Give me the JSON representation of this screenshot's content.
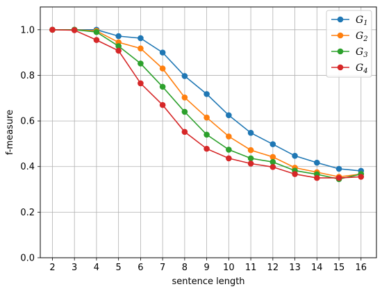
{
  "chart_data": {
    "type": "line",
    "title": "",
    "xlabel": "sentence length",
    "ylabel": "f-measure",
    "x": [
      2,
      3,
      4,
      5,
      6,
      7,
      8,
      9,
      10,
      11,
      12,
      13,
      14,
      15,
      16
    ],
    "xlim": [
      1.45,
      16.7
    ],
    "ylim": [
      0.0,
      1.1
    ],
    "yticks": [
      0.0,
      0.2,
      0.4,
      0.6,
      0.8,
      1.0
    ],
    "ytick_labels": [
      "0.0",
      "0.2",
      "0.4",
      "0.6",
      "0.8",
      "1.0"
    ],
    "xtick_labels": [
      "2",
      "3",
      "4",
      "5",
      "6",
      "7",
      "8",
      "9",
      "10",
      "11",
      "12",
      "13",
      "14",
      "15",
      "16"
    ],
    "grid": true,
    "legend_position": "top-right",
    "series": [
      {
        "name": "G",
        "sub": "1",
        "color": "#1f77b4",
        "values": [
          1.0,
          1.0,
          1.0,
          0.972,
          0.963,
          0.9,
          0.797,
          0.718,
          0.625,
          0.548,
          0.498,
          0.447,
          0.417,
          0.39,
          0.381
        ]
      },
      {
        "name": "G",
        "sub": "2",
        "color": "#ff7f0e",
        "values": [
          1.0,
          1.0,
          0.995,
          0.945,
          0.918,
          0.83,
          0.703,
          0.615,
          0.532,
          0.472,
          0.442,
          0.395,
          0.375,
          0.355,
          0.367
        ]
      },
      {
        "name": "G",
        "sub": "3",
        "color": "#2ca02c",
        "values": [
          1.0,
          1.0,
          0.99,
          0.928,
          0.852,
          0.75,
          0.64,
          0.54,
          0.474,
          0.436,
          0.42,
          0.382,
          0.366,
          0.345,
          0.367
        ]
      },
      {
        "name": "G",
        "sub": "4",
        "color": "#d62728",
        "values": [
          1.0,
          0.998,
          0.955,
          0.908,
          0.765,
          0.67,
          0.552,
          0.478,
          0.436,
          0.413,
          0.398,
          0.367,
          0.35,
          0.35,
          0.355
        ]
      }
    ]
  }
}
